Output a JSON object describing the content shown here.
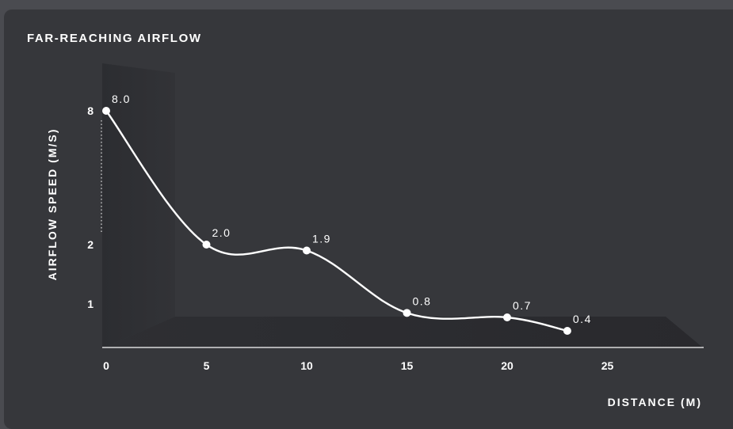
{
  "chart_data": {
    "type": "line",
    "title": "FAR-REACHING AIRFLOW",
    "xlabel": "DISTANCE (M)",
    "ylabel": "AIRFLOW SPEED (M/S)",
    "x_ticks": [
      "0",
      "5",
      "10",
      "15",
      "20",
      "25"
    ],
    "y_ticks": [
      "8",
      "2",
      "1"
    ],
    "xlim": [
      0,
      29
    ],
    "ylim_display": "broken axis (8 / 2 / 1), 3D floor style",
    "grid": false,
    "legend": "none",
    "series": [
      {
        "x": [
          0,
          5,
          10,
          15,
          20,
          23
        ],
        "y": [
          8.0,
          2.0,
          1.9,
          0.8,
          0.7,
          0.4
        ],
        "labels": [
          "8.0",
          "2.0",
          "1.9",
          "0.8",
          "0.7",
          "0.4"
        ]
      }
    ],
    "colors": {
      "line": "#ffffff",
      "background": "#36373b",
      "wall": "#2f3034",
      "floor": "#2c2d31"
    }
  }
}
